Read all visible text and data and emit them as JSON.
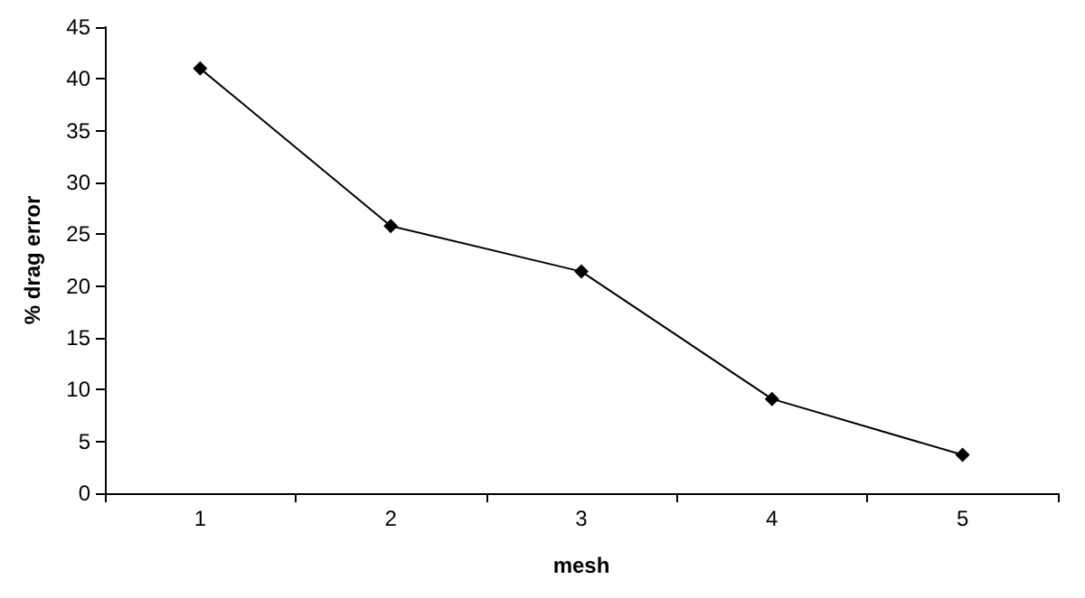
{
  "chart_data": {
    "type": "line",
    "xlabel": "mesh",
    "ylabel": "% drag error",
    "categories": [
      "1",
      "2",
      "3",
      "4",
      "5"
    ],
    "series": [
      {
        "color": "#000000",
        "values": [
          41,
          25.8,
          21.4,
          9.1,
          3.7
        ]
      }
    ],
    "ylim": [
      0,
      45
    ],
    "yticks": [
      0,
      5,
      10,
      15,
      20,
      25,
      30,
      35,
      40,
      45
    ],
    "grid": false,
    "marker": "diamond",
    "line_style": "solid"
  }
}
